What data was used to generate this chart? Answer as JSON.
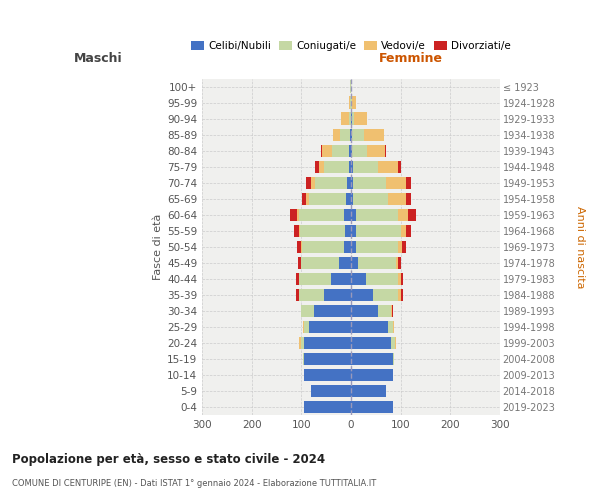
{
  "age_groups": [
    "0-4",
    "5-9",
    "10-14",
    "15-19",
    "20-24",
    "25-29",
    "30-34",
    "35-39",
    "40-44",
    "45-49",
    "50-54",
    "55-59",
    "60-64",
    "65-69",
    "70-74",
    "75-79",
    "80-84",
    "85-89",
    "90-94",
    "95-99",
    "100+"
  ],
  "birth_years": [
    "2019-2023",
    "2014-2018",
    "2009-2013",
    "2004-2008",
    "1999-2003",
    "1994-1998",
    "1989-1993",
    "1984-1988",
    "1979-1983",
    "1974-1978",
    "1969-1973",
    "1964-1968",
    "1959-1963",
    "1954-1958",
    "1949-1953",
    "1944-1948",
    "1939-1943",
    "1934-1938",
    "1929-1933",
    "1924-1928",
    "≤ 1923"
  ],
  "maschi_celibi": [
    95,
    80,
    95,
    95,
    95,
    85,
    75,
    55,
    40,
    25,
    14,
    12,
    15,
    10,
    8,
    5,
    3,
    2,
    0,
    0,
    0
  ],
  "maschi_coniugati": [
    0,
    0,
    0,
    1,
    5,
    10,
    25,
    50,
    65,
    75,
    85,
    90,
    90,
    75,
    65,
    50,
    35,
    20,
    5,
    2,
    1
  ],
  "maschi_vedovi": [
    0,
    0,
    0,
    0,
    5,
    2,
    0,
    0,
    0,
    1,
    1,
    2,
    3,
    5,
    8,
    10,
    20,
    15,
    15,
    2,
    0
  ],
  "maschi_divorziati": [
    0,
    0,
    0,
    0,
    0,
    0,
    0,
    5,
    5,
    5,
    8,
    10,
    15,
    8,
    10,
    8,
    2,
    0,
    0,
    0,
    0
  ],
  "femmine_nubili": [
    85,
    70,
    85,
    85,
    80,
    75,
    55,
    45,
    30,
    15,
    10,
    10,
    10,
    5,
    5,
    5,
    3,
    2,
    2,
    0,
    0
  ],
  "femmine_coniugate": [
    0,
    0,
    0,
    2,
    8,
    10,
    25,
    50,
    65,
    75,
    85,
    90,
    85,
    70,
    65,
    50,
    30,
    25,
    5,
    2,
    0
  ],
  "femmine_vedove": [
    0,
    0,
    0,
    0,
    2,
    2,
    2,
    5,
    5,
    5,
    8,
    10,
    20,
    35,
    40,
    40,
    35,
    40,
    25,
    8,
    1
  ],
  "femmine_divorziate": [
    0,
    0,
    0,
    0,
    0,
    0,
    2,
    5,
    5,
    5,
    8,
    10,
    15,
    10,
    10,
    5,
    2,
    0,
    0,
    0,
    0
  ],
  "color_celibi": "#4472c4",
  "color_coniugati": "#c5d8a4",
  "color_vedovi": "#f0c070",
  "color_divorziati": "#cc2222",
  "xlim": 300,
  "title": "Popolazione per età, sesso e stato civile - 2024",
  "subtitle": "COMUNE DI CENTURIPE (EN) - Dati ISTAT 1° gennaio 2024 - Elaborazione TUTTITALIA.IT",
  "ylabel_left": "Fasce di età",
  "ylabel_right": "Anni di nascita",
  "header_maschi": "Maschi",
  "header_femmine": "Femmine",
  "legend_labels": [
    "Celibi/Nubili",
    "Coniugati/e",
    "Vedovi/e",
    "Divorziati/e"
  ],
  "bg_color": "#f0f0ee",
  "grid_color": "#cccccc"
}
